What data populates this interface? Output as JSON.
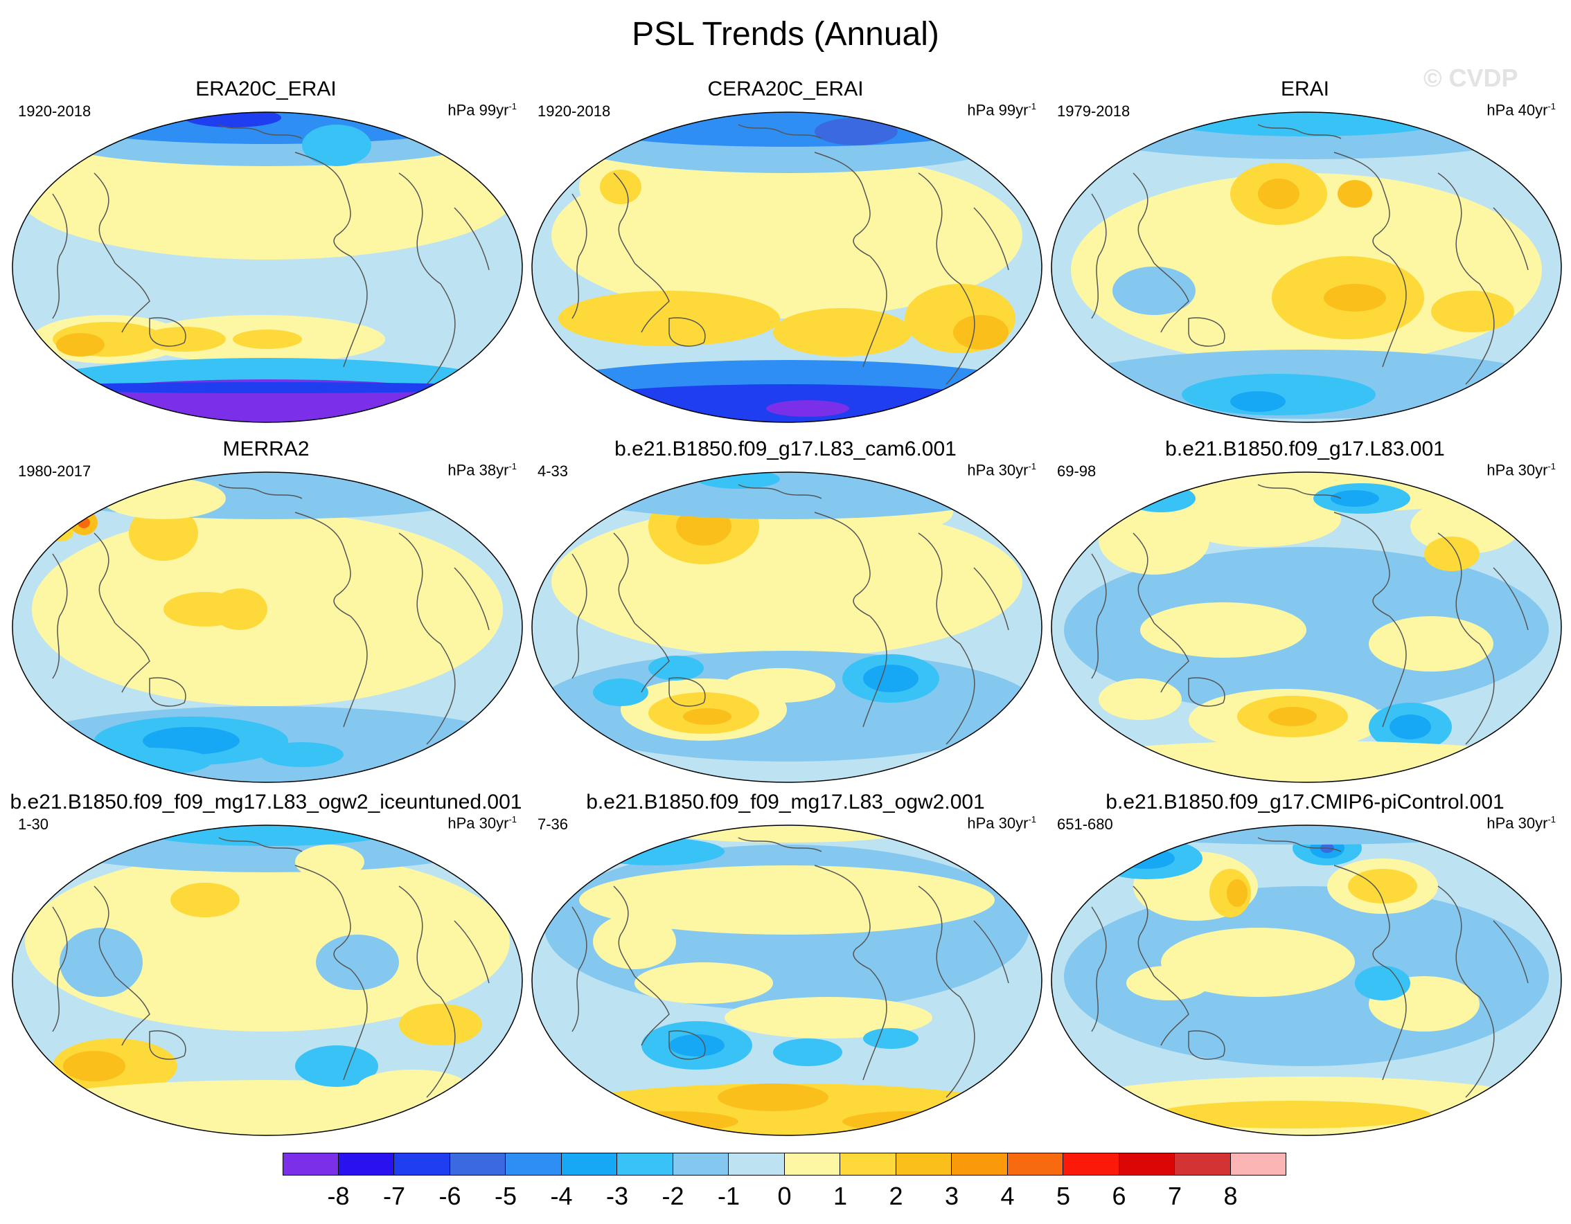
{
  "title": "PSL Trends (Annual)",
  "watermark": "© CVDP",
  "colorbar": {
    "levels": [
      "-8",
      "-7",
      "-6",
      "-5",
      "-4",
      "-3",
      "-2",
      "-1",
      "0",
      "1",
      "2",
      "3",
      "4",
      "5",
      "6",
      "7",
      "8"
    ],
    "colors": [
      "#7b2fe8",
      "#2a12f0",
      "#1e3ef0",
      "#3b6ae0",
      "#2f8ef3",
      "#17a8f5",
      "#39c2f5",
      "#84c8ef",
      "#bde3f2",
      "#fdf7a4",
      "#fdd93a",
      "#fbbf1b",
      "#fa9a0a",
      "#f86a10",
      "#fb1a0a",
      "#dd0606",
      "#d33333",
      "#fcb5b5"
    ]
  },
  "panels": [
    {
      "title": "ERA20C_ERAI",
      "period": "1920-2018",
      "units": "hPa 99yr",
      "units_exp": "-1",
      "pattern": "era20c"
    },
    {
      "title": "CERA20C_ERAI",
      "period": "1920-2018",
      "units": "hPa 99yr",
      "units_exp": "-1",
      "pattern": "cera20c"
    },
    {
      "title": "ERAI",
      "period": "1979-2018",
      "units": "hPa 40yr",
      "units_exp": "-1",
      "pattern": "erai"
    },
    {
      "title": "MERRA2",
      "period": "1980-2017",
      "units": "hPa 38yr",
      "units_exp": "-1",
      "pattern": "merra2"
    },
    {
      "title": "b.e21.B1850.f09_g17.L83_cam6.001",
      "period": "4-33",
      "units": "hPa 30yr",
      "units_exp": "-1",
      "pattern": "cam6"
    },
    {
      "title": "b.e21.B1850.f09_g17.L83.001",
      "period": "69-98",
      "units": "hPa 30yr",
      "units_exp": "-1",
      "pattern": "l83"
    },
    {
      "title": "b.e21.B1850.f09_f09_mg17.L83_ogw2_iceuntuned.001",
      "period": "1-30",
      "units": "hPa 30yr",
      "units_exp": "-1",
      "pattern": "iceuntuned"
    },
    {
      "title": "b.e21.B1850.f09_f09_mg17.L83_ogw2.001",
      "period": "7-36",
      "units": "hPa 30yr",
      "units_exp": "-1",
      "pattern": "ogw2"
    },
    {
      "title": "b.e21.B1850.f09_g17.CMIP6-piControl.001",
      "period": "651-680",
      "units": "hPa 30yr",
      "units_exp": "-1",
      "pattern": "picontrol"
    }
  ]
}
